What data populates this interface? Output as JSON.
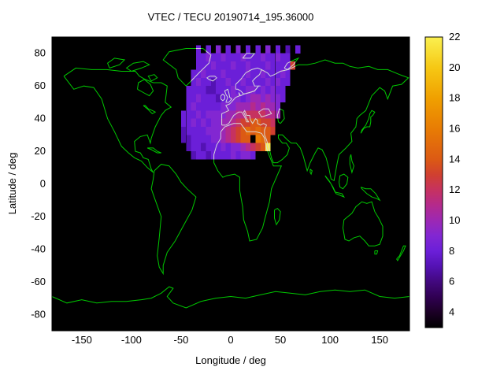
{
  "colors": {
    "figure_background": "#ffffff",
    "text": "#000000",
    "map_background": "#000000",
    "coastline": "#00c800",
    "coastline_over_data": "#d9d9d9",
    "border": "#000000"
  },
  "chart_data": {
    "type": "heatmap",
    "title": "VTEC / TECU 20190714_195.36000",
    "xlabel": "Longitude / deg",
    "ylabel": "Latitude / deg",
    "xlim": [
      -180,
      180
    ],
    "ylim": [
      -90,
      90
    ],
    "xticks": [
      -150,
      -100,
      -50,
      0,
      50,
      100,
      150
    ],
    "yticks": [
      -80,
      -60,
      -40,
      -20,
      0,
      20,
      40,
      60,
      80
    ],
    "grid_lines": false,
    "legend": "colorbar-right",
    "colorbar": {
      "min": 3,
      "max": 22,
      "ticks": [
        4,
        6,
        8,
        10,
        12,
        14,
        16,
        18,
        20,
        22
      ],
      "palette": [
        {
          "v": 3,
          "c": "#000000"
        },
        {
          "v": 4,
          "c": "#1c0026"
        },
        {
          "v": 5,
          "c": "#300052"
        },
        {
          "v": 6,
          "c": "#42087e"
        },
        {
          "v": 7,
          "c": "#5412b4"
        },
        {
          "v": 8,
          "c": "#6b1fd8"
        },
        {
          "v": 9,
          "c": "#8227d2"
        },
        {
          "v": 10,
          "c": "#9c28b4"
        },
        {
          "v": 11,
          "c": "#b42a8c"
        },
        {
          "v": 12,
          "c": "#c63260"
        },
        {
          "v": 13,
          "c": "#d04030"
        },
        {
          "v": 14,
          "c": "#dc5a14"
        },
        {
          "v": 16,
          "c": "#e87c04"
        },
        {
          "v": 18,
          "c": "#f0a000"
        },
        {
          "v": 20,
          "c": "#f6c814"
        },
        {
          "v": 22,
          "c": "#faf050"
        }
      ]
    },
    "grid": {
      "lon_start": -50,
      "lat_top": 85,
      "cell_deg": 5,
      "values": [
        [
          null,
          null,
          null,
          8,
          null,
          8,
          null,
          9,
          null,
          8,
          null,
          9,
          null,
          8,
          null,
          8,
          null,
          9,
          null,
          8,
          null,
          7,
          null,
          8
        ],
        [
          null,
          null,
          null,
          8,
          8,
          9,
          8,
          8,
          9,
          8,
          8,
          8,
          9,
          8,
          8,
          8,
          9,
          8,
          8,
          9,
          8,
          8,
          null,
          null
        ],
        [
          null,
          null,
          null,
          8,
          8,
          8,
          9,
          8,
          8,
          8,
          9,
          8,
          8,
          9,
          8,
          8,
          8,
          9,
          8,
          8,
          8,
          8,
          13,
          null
        ],
        [
          null,
          null,
          8,
          8,
          9,
          8,
          8,
          8,
          9,
          8,
          8,
          8,
          8,
          9,
          8,
          8,
          9,
          8,
          8,
          8,
          9,
          8,
          null,
          null
        ],
        [
          null,
          null,
          8,
          9,
          8,
          8,
          7,
          8,
          8,
          9,
          8,
          8,
          9,
          8,
          8,
          8,
          8,
          9,
          8,
          9,
          8,
          8,
          null,
          null
        ],
        [
          null,
          8,
          8,
          8,
          8,
          7,
          7,
          8,
          8,
          8,
          9,
          8,
          8,
          9,
          9,
          8,
          9,
          8,
          9,
          8,
          8,
          null,
          null,
          null
        ],
        [
          null,
          8,
          8,
          9,
          8,
          8,
          8,
          7,
          8,
          8,
          9,
          9,
          8,
          9,
          10,
          10,
          9,
          10,
          9,
          9,
          8,
          null,
          null,
          null
        ],
        [
          null,
          8,
          9,
          8,
          8,
          8,
          8,
          8,
          9,
          9,
          9,
          10,
          10,
          10,
          11,
          10,
          11,
          10,
          10,
          9,
          null,
          null,
          null,
          null
        ],
        [
          8,
          8,
          8,
          9,
          8,
          9,
          9,
          9,
          9,
          10,
          10,
          11,
          11,
          12,
          12,
          12,
          12,
          11,
          11,
          10,
          null,
          null,
          null,
          null
        ],
        [
          8,
          8,
          9,
          8,
          9,
          8,
          9,
          9,
          10,
          10,
          11,
          12,
          13,
          13,
          14,
          14,
          13,
          13,
          12,
          null,
          null,
          null,
          null,
          null
        ],
        [
          7,
          8,
          8,
          8,
          8,
          9,
          9,
          9,
          10,
          11,
          12,
          13,
          14,
          15,
          14,
          15,
          14,
          14,
          13,
          null,
          null,
          null,
          null,
          null
        ],
        [
          7,
          7,
          8,
          8,
          8,
          8,
          9,
          9,
          10,
          11,
          12,
          13,
          14,
          14,
          3,
          16,
          15,
          14,
          null,
          null,
          null,
          null,
          null,
          null
        ],
        [
          null,
          7,
          8,
          8,
          7,
          8,
          8,
          8,
          9,
          8,
          9,
          9,
          10,
          11,
          12,
          13,
          14,
          22,
          null,
          null,
          null,
          null,
          null,
          null
        ],
        [
          null,
          null,
          7,
          8,
          8,
          7,
          8,
          8,
          8,
          8,
          9,
          8,
          9,
          9,
          8,
          null,
          null,
          null,
          null,
          null,
          null,
          null,
          null,
          null
        ]
      ]
    }
  }
}
